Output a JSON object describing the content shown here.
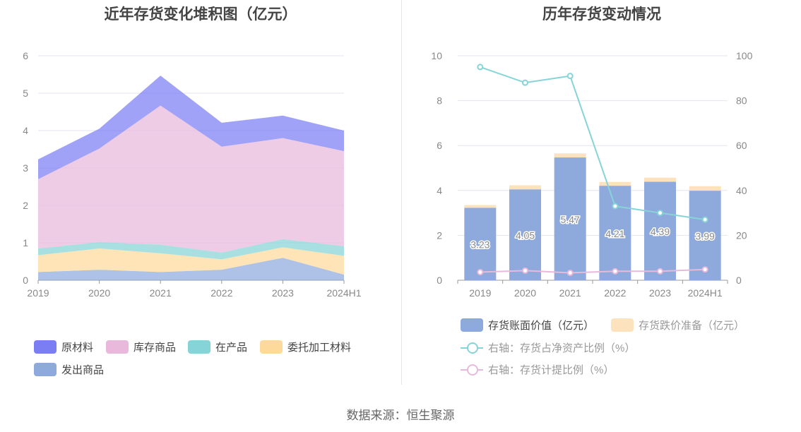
{
  "footer": {
    "source": "数据来源：恒生聚源"
  },
  "chart_data": [
    {
      "type": "area",
      "stacked": true,
      "title": "近年存货变化堆积图（亿元）",
      "categories": [
        "2019",
        "2020",
        "2021",
        "2022",
        "2023",
        "2024H1"
      ],
      "ylim": [
        0,
        6
      ],
      "yticks": [
        "0",
        "1",
        "2",
        "3",
        "4",
        "5",
        "6"
      ],
      "grid": true,
      "legend_position": "bottom",
      "series": [
        {
          "name": "发出商品",
          "color": "#8eaadc",
          "values": [
            0.22,
            0.28,
            0.22,
            0.28,
            0.6,
            0.15
          ]
        },
        {
          "name": "委托加工材料",
          "color": "#fdd99b",
          "values": [
            0.45,
            0.57,
            0.5,
            0.28,
            0.28,
            0.5
          ]
        },
        {
          "name": "在产品",
          "color": "#86d4d7",
          "values": [
            0.18,
            0.17,
            0.23,
            0.18,
            0.22,
            0.26
          ]
        },
        {
          "name": "库存商品",
          "color": "#e9b9dc",
          "values": [
            1.85,
            2.5,
            3.72,
            2.83,
            2.7,
            2.54
          ]
        },
        {
          "name": "原材料",
          "color": "#7a7ef2",
          "values": [
            0.53,
            0.53,
            0.8,
            0.64,
            0.6,
            0.55
          ]
        }
      ]
    },
    {
      "type": "bar",
      "stacked": true,
      "title": "历年存货变动情况",
      "categories": [
        "2019",
        "2020",
        "2021",
        "2022",
        "2023",
        "2024H1"
      ],
      "ylim": [
        0,
        10
      ],
      "yticks": [
        "0",
        "2",
        "4",
        "6",
        "8",
        "10"
      ],
      "y2lim": [
        0,
        100
      ],
      "y2ticks": [
        "0",
        "20",
        "40",
        "60",
        "80",
        "100"
      ],
      "grid": true,
      "legend_position": "bottom",
      "series": [
        {
          "name": "存货账面价值（亿元）",
          "color": "#8eaadc",
          "values": [
            3.23,
            4.05,
            5.47,
            4.21,
            4.39,
            3.99
          ],
          "labels": [
            "3.23",
            "4.05",
            "5.47",
            "4.21",
            "4.39",
            "3.99"
          ]
        },
        {
          "name": "存货跌价准备（亿元）",
          "color": "#fde3bd",
          "values": [
            0.12,
            0.18,
            0.18,
            0.17,
            0.18,
            0.2
          ]
        }
      ],
      "lines": [
        {
          "name": "右轴：存货占净资产比例（%）",
          "color": "#86d4d7",
          "axis": "right",
          "values": [
            95,
            88,
            91,
            33,
            30,
            27
          ]
        },
        {
          "name": "右轴：存货计提比例（%）",
          "color": "#e9b9dc",
          "axis": "right",
          "values": [
            3.6,
            4.3,
            3.3,
            4.0,
            4.0,
            4.8
          ]
        }
      ]
    }
  ]
}
